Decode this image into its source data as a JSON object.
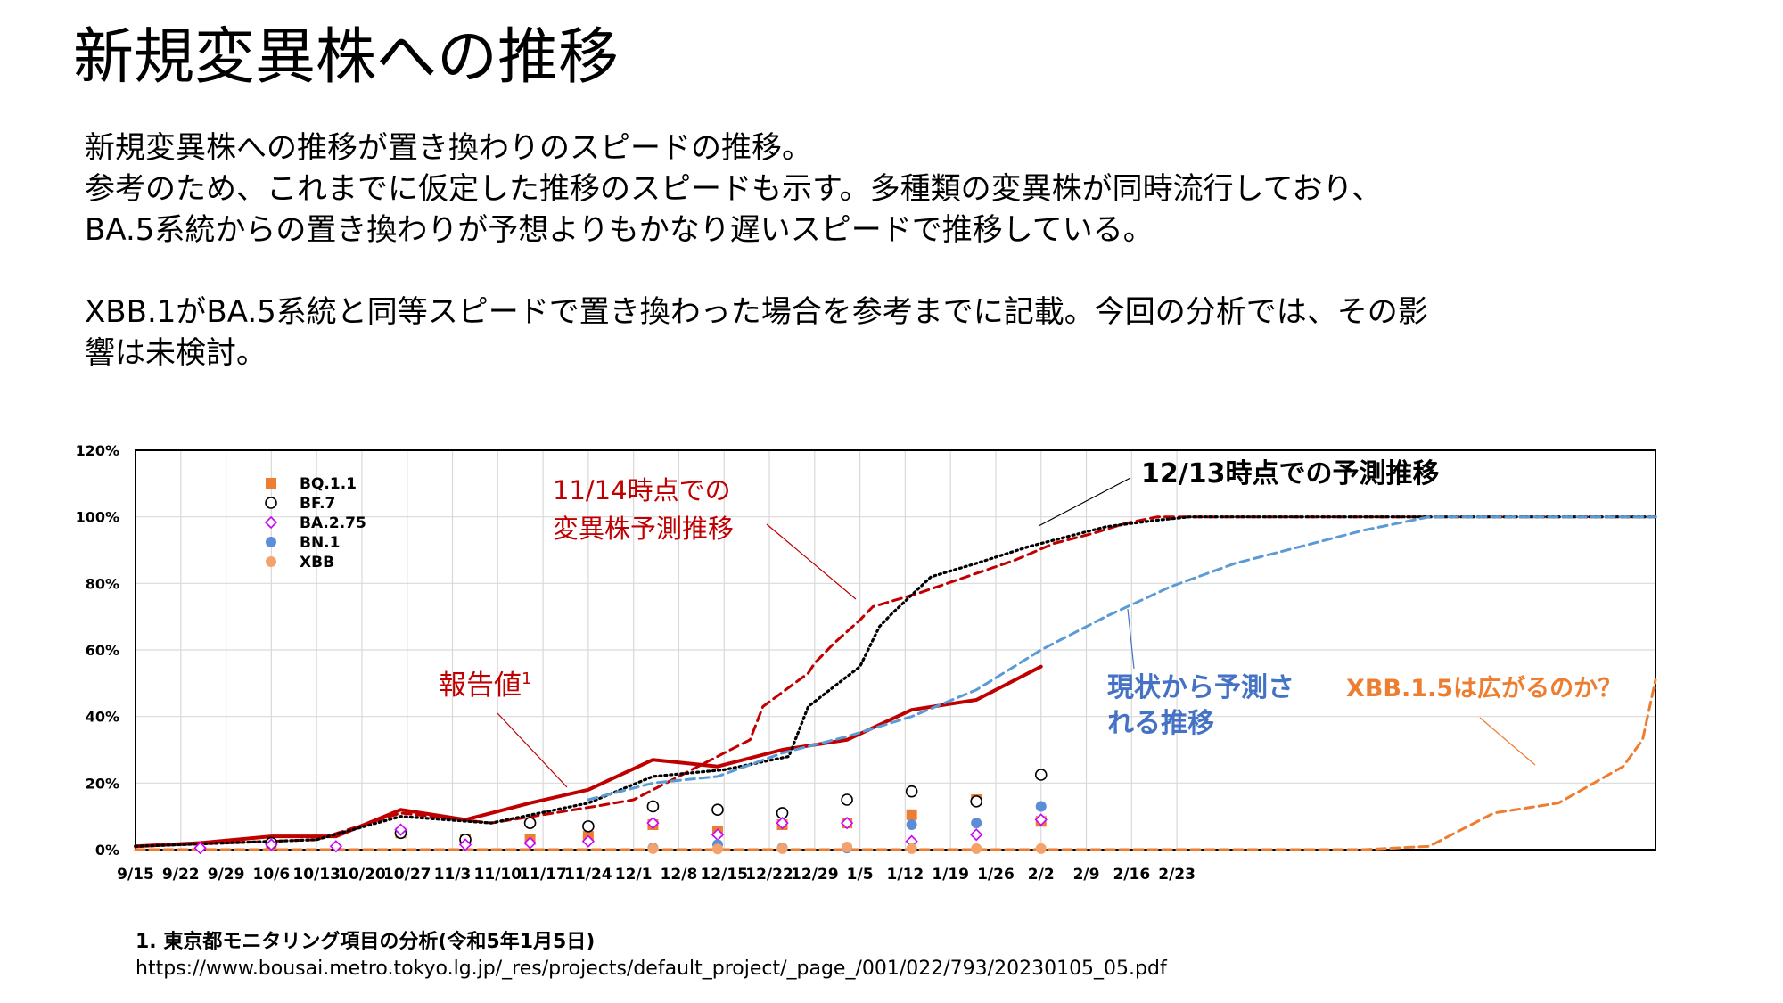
{
  "page": {
    "title": "新規変異株への推移",
    "description": [
      "新規変異株への推移が置き換わりのスピードの推移。",
      "参考のため、これまでに仮定した推移のスピードも示す。多種類の変異株が同時流行しており、",
      "BA.5系統からの置き換わりが予想よりもかなり遅いスピードで推移している。",
      "",
      "XBB.1がBA.5系統と同等スピードで置き換わった場合を参考までに記載。今回の分析では、その影",
      "響は未検討。"
    ],
    "footnote": {
      "ref": "1.  東京都モニタリング項目の分析(令和5年1月5日)",
      "url": "https://www.bousai.metro.tokyo.lg.jp/_res/projects/default_project/_page_/001/022/793/20230105_05.pdf"
    }
  },
  "chart_data": {
    "type": "line",
    "title": "",
    "xlabel": "",
    "ylabel": "",
    "x_tick_labels": [
      "9/15",
      "9/22",
      "9/29",
      "10/6",
      "10/13",
      "10/20",
      "10/27",
      "11/3",
      "11/10",
      "11/17",
      "11/24",
      "12/1",
      "12/8",
      "12/15",
      "12/22",
      "12/29",
      "1/5",
      "1/12",
      "1/19",
      "1/26",
      "2/2",
      "2/9",
      "2/16",
      "2/23"
    ],
    "x_range_days": [
      0,
      235
    ],
    "y_tick_labels": [
      "0%",
      "20%",
      "40%",
      "60%",
      "80%",
      "100%",
      "120%"
    ],
    "ylim": [
      0,
      120
    ],
    "grid": true,
    "legend": {
      "position": "top-left"
    },
    "colors": {
      "bq11": "#ED7D31",
      "bf7": "#000000",
      "ba275": "#CC00FF",
      "bn1": "#5B8ED6",
      "xbb": "#F4A26B",
      "reported": "#C00000",
      "forecast1114": "#C00000",
      "forecast1213": "#000000",
      "current": "#5B9BD5",
      "xbb15": "#ED7D31",
      "axis_text": "#000000",
      "grid": "#D9D9D9",
      "label_blue": "#4472C4",
      "label_orange": "#ED7D31"
    },
    "annotations": [
      {
        "text": "11/14時点での",
        "color": "#C00000"
      },
      {
        "text": "変異株予測推移",
        "color": "#C00000"
      },
      {
        "text": "12/13時点での予測推移",
        "color": "#000000"
      },
      {
        "text": "報告値",
        "sup": "1",
        "color": "#C00000"
      },
      {
        "text": "現状から予測さ",
        "color": "#4472C4"
      },
      {
        "text": "れる推移",
        "color": "#4472C4"
      },
      {
        "text": "XBB.1.5は広がるのか？",
        "color": "#ED7D31"
      }
    ],
    "series": [
      {
        "name": "報告値",
        "style": "solid",
        "color": "#C00000",
        "x": [
          0,
          10,
          21,
          31,
          41,
          51,
          61,
          70,
          80,
          90,
          100,
          110,
          120,
          130,
          140
        ],
        "y": [
          1,
          2,
          4,
          4,
          12,
          9,
          14,
          18,
          27,
          25,
          30,
          33,
          42,
          45,
          55
        ]
      },
      {
        "name": "11/14時点での変異株予測推移",
        "style": "dashed",
        "color": "#C00000",
        "x": [
          0,
          14,
          28,
          41,
          55,
          71,
          77,
          84,
          91,
          95,
          97,
          104,
          105,
          108,
          112,
          114,
          121,
          127,
          136,
          142,
          148,
          153,
          158,
          235
        ],
        "y": [
          1,
          2,
          3,
          11,
          8,
          13,
          15,
          22,
          29,
          33,
          43,
          53,
          56,
          62,
          69,
          73,
          77,
          81,
          87,
          92,
          95,
          98,
          100,
          100
        ]
      },
      {
        "name": "12/13時点での予測推移",
        "style": "dotted",
        "color": "#000000",
        "x": [
          0,
          14,
          28,
          41,
          55,
          70,
          80,
          91,
          101,
          104,
          110,
          112,
          115,
          117,
          123,
          130,
          138,
          144,
          150,
          154,
          158,
          163,
          235
        ],
        "y": [
          1,
          2,
          3,
          10,
          8,
          14,
          22,
          24,
          28,
          43,
          52,
          55,
          67,
          71,
          82,
          86,
          91,
          94,
          97,
          98,
          99,
          100,
          100
        ]
      },
      {
        "name": "現状から予測される推移",
        "style": "dashed",
        "color": "#5B9BD5",
        "x": [
          70,
          80,
          90,
          100,
          110,
          120,
          130,
          140,
          150,
          160,
          170,
          180,
          190,
          200,
          210,
          235
        ],
        "y": [
          15,
          20,
          22,
          29,
          34,
          40,
          48,
          60,
          70,
          79,
          86,
          91,
          96,
          100,
          100,
          100
        ]
      },
      {
        "name": "XBB.1.5は広がるのか？",
        "style": "dashed",
        "color": "#ED7D31",
        "x": [
          0,
          190,
          200,
          210,
          220,
          230,
          233,
          235
        ],
        "y": [
          0,
          0,
          1,
          11,
          14,
          25,
          33,
          51
        ]
      }
    ],
    "scatter": [
      {
        "name": "BQ.1.1",
        "marker": "filled-square",
        "color": "#ED7D31",
        "x": [
          21,
          41,
          51,
          61,
          70,
          80,
          90,
          100,
          110,
          120,
          130,
          140
        ],
        "y": [
          1.5,
          5,
          3,
          3,
          4,
          7.5,
          5.5,
          7.5,
          8,
          10.5,
          15,
          8.5
        ]
      },
      {
        "name": "BF.7",
        "marker": "hollow-circle",
        "color": "#000000",
        "x": [
          21,
          41,
          51,
          61,
          70,
          80,
          90,
          100,
          110,
          120,
          130,
          140
        ],
        "y": [
          2,
          5,
          3,
          8,
          7,
          13,
          12,
          11,
          15,
          17.5,
          14.5,
          22.5
        ]
      },
      {
        "name": "BA.2.75",
        "marker": "hollow-diamond",
        "color": "#CC00FF",
        "x": [
          10,
          21,
          31,
          41,
          51,
          61,
          70,
          80,
          90,
          100,
          110,
          120,
          130,
          140
        ],
        "y": [
          0.5,
          1.5,
          1,
          6,
          1.5,
          2,
          2.5,
          8,
          4.5,
          8,
          8,
          2.5,
          4.5,
          9
        ]
      },
      {
        "name": "BN.1",
        "marker": "filled-circle",
        "color": "#5B8ED6",
        "x": [
          80,
          90,
          100,
          110,
          120,
          130,
          140
        ],
        "y": [
          0.5,
          1.5,
          0.5,
          0.5,
          7.5,
          8,
          13
        ]
      },
      {
        "name": "XBB",
        "marker": "filled-circle",
        "color": "#F4A26B",
        "x": [
          80,
          90,
          100,
          110,
          120,
          130,
          140
        ],
        "y": [
          0.3,
          0.2,
          0.3,
          0.8,
          0.3,
          0.3,
          0.3
        ]
      }
    ]
  }
}
